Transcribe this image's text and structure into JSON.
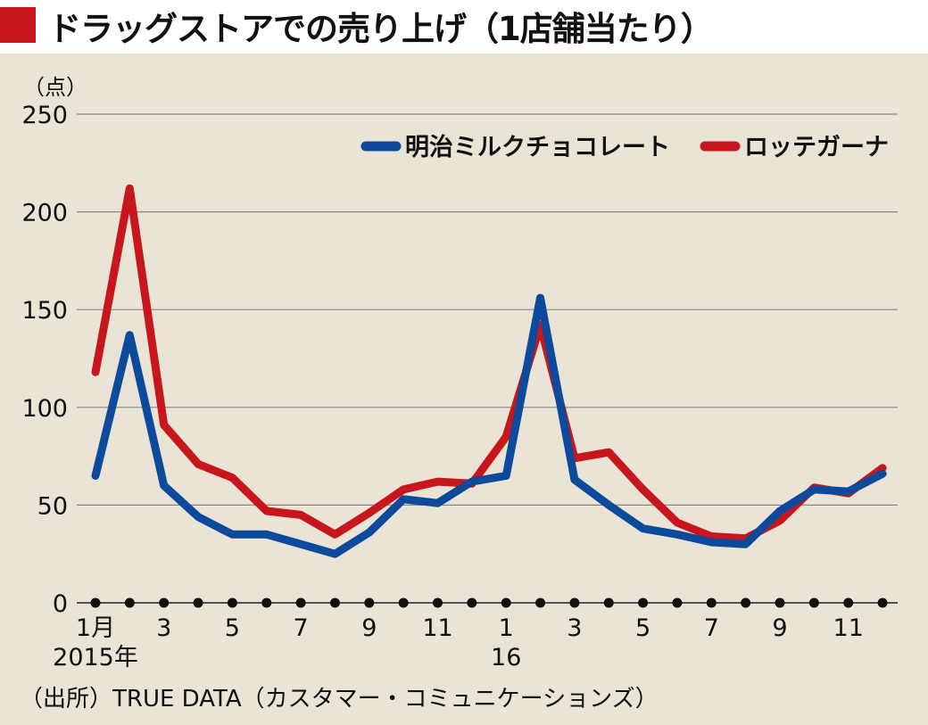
{
  "title": "ドラッグストアでの売り上げ（1店舗当たり）",
  "source": "（出所）TRUE DATA（カスタマー・コミュニケーションズ）",
  "colors": {
    "title_marker": "#c8161d",
    "background": "#e9e4d6",
    "meiji": "#0d4a9c",
    "lotte": "#c8161d"
  },
  "chart_data": {
    "type": "line",
    "unit_label": "（点）",
    "ylim": [
      0,
      250
    ],
    "yticks": [
      "0",
      "50",
      "100",
      "150",
      "200",
      "250"
    ],
    "grid": true,
    "legend_position": "top-right",
    "x": [
      "2015-01",
      "2015-02",
      "2015-03",
      "2015-04",
      "2015-05",
      "2015-06",
      "2015-07",
      "2015-08",
      "2015-09",
      "2015-10",
      "2015-11",
      "2015-12",
      "2016-01",
      "2016-02",
      "2016-03",
      "2016-04",
      "2016-05",
      "2016-06",
      "2016-07",
      "2016-08",
      "2016-09",
      "2016-10",
      "2016-11",
      "2016-12"
    ],
    "tick_labels": [
      {
        "text": "1月",
        "index": 0
      },
      {
        "text": "3",
        "index": 2
      },
      {
        "text": "5",
        "index": 4
      },
      {
        "text": "7",
        "index": 6
      },
      {
        "text": "9",
        "index": 8
      },
      {
        "text": "11",
        "index": 10
      },
      {
        "text": "1",
        "index": 12
      },
      {
        "text": "3",
        "index": 14
      },
      {
        "text": "5",
        "index": 16
      },
      {
        "text": "7",
        "index": 18
      },
      {
        "text": "9",
        "index": 20
      },
      {
        "text": "11",
        "index": 22
      }
    ],
    "year_labels": [
      {
        "text": "2015年",
        "index": 0
      },
      {
        "text": "16",
        "index": 12
      }
    ],
    "series": [
      {
        "name": "明治ミルクチョコレート",
        "color": "#0d4a9c",
        "values": [
          65,
          137,
          60,
          44,
          35,
          35,
          30,
          25,
          36,
          53,
          51,
          62,
          65,
          156,
          63,
          50,
          38,
          35,
          31,
          30,
          47,
          58,
          57,
          66
        ]
      },
      {
        "name": "ロッテガーナ",
        "color": "#c8161d",
        "values": [
          118,
          212,
          91,
          71,
          64,
          47,
          45,
          35,
          46,
          58,
          62,
          61,
          85,
          142,
          74,
          77,
          58,
          41,
          34,
          33,
          42,
          59,
          56,
          69
        ]
      }
    ]
  }
}
